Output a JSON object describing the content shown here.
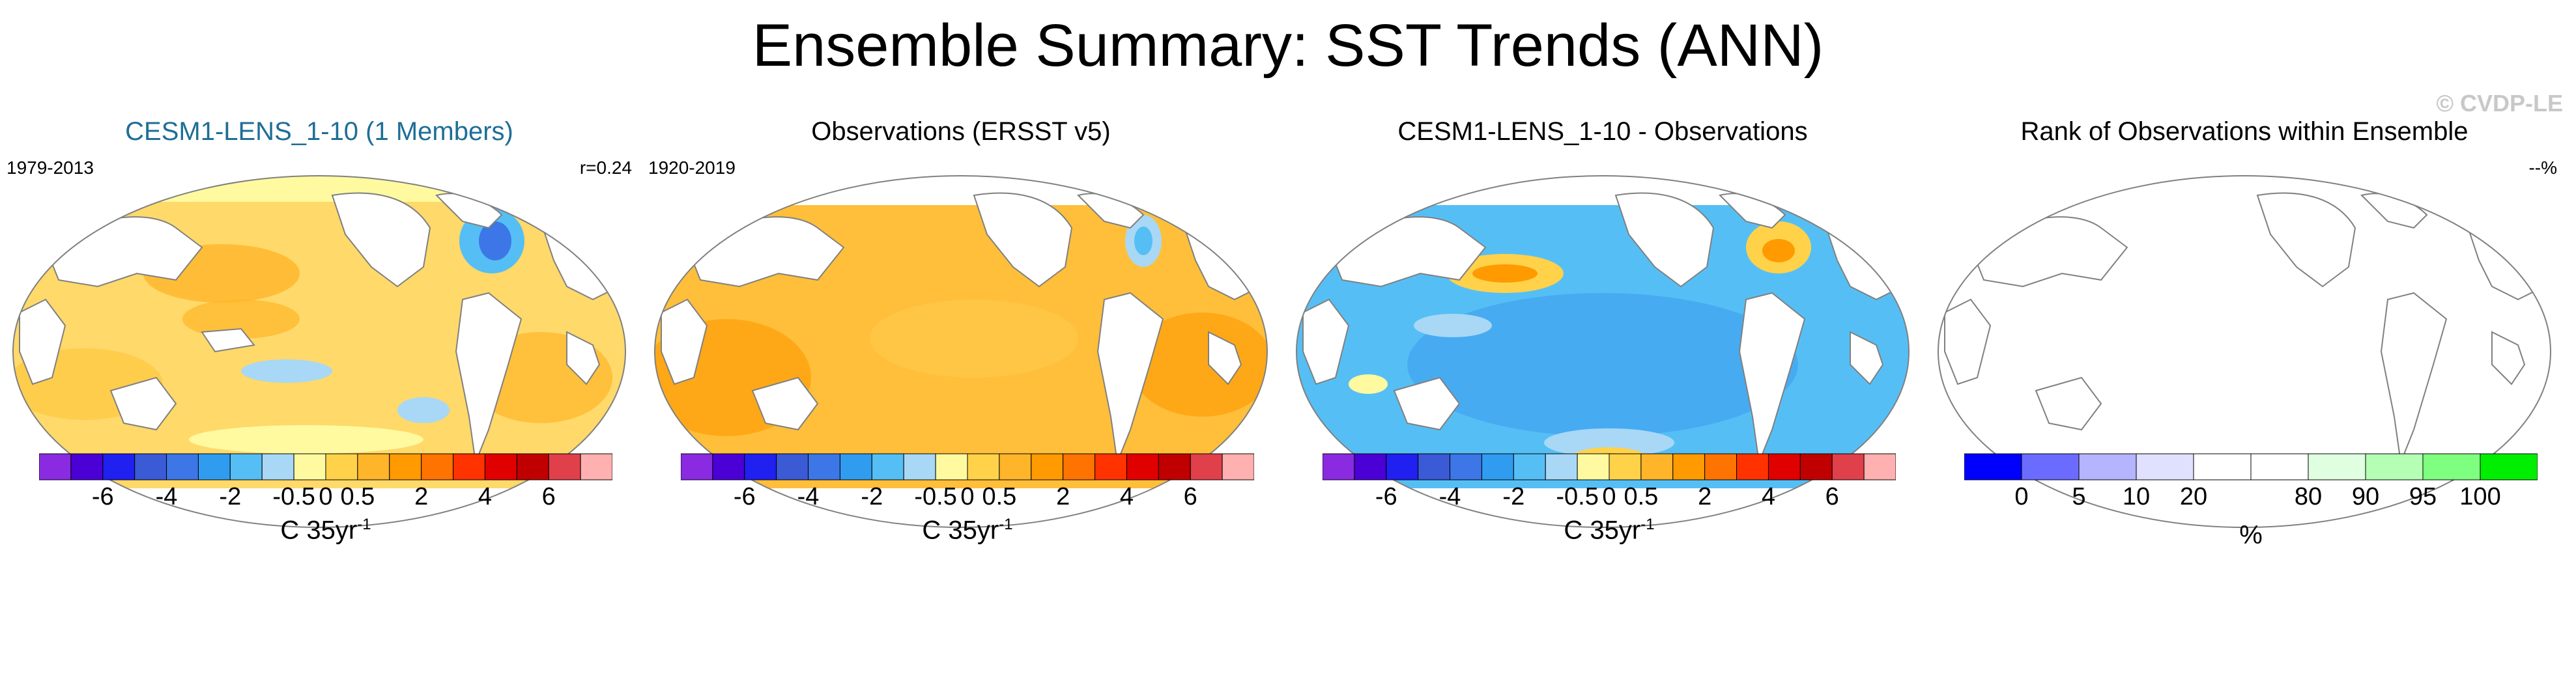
{
  "title": "Ensemble Summary: SST Trends (ANN)",
  "watermark": "© CVDP-LE",
  "panels": [
    {
      "title": "CESM1-LENS_1-10 (1 Members)",
      "left": "1979-2013",
      "right": "r=0.24"
    },
    {
      "title": "Observations (ERSST v5)",
      "left": "1920-2019",
      "right": ""
    },
    {
      "title": "CESM1-LENS_1-10 - Observations",
      "left": "",
      "right": ""
    },
    {
      "title": "Rank of Observations within Ensemble",
      "left": "",
      "right": "--%"
    }
  ],
  "colorbar_trend": {
    "colors": [
      "#8a2be2",
      "#4b00d6",
      "#2020f0",
      "#3a5ad6",
      "#3d76e6",
      "#2f9cf0",
      "#55bff5",
      "#a8d8f5",
      "#fffaa0",
      "#ffd24a",
      "#ffb52a",
      "#ff9a00",
      "#ff7300",
      "#ff3200",
      "#e00000",
      "#c00000",
      "#e0404a",
      "#ffb0b0"
    ],
    "ticks": [
      "-6",
      "-4",
      "-2",
      "-0.5",
      "0",
      "0.5",
      "2",
      "4",
      "6"
    ],
    "unit": "C 35yr",
    "unit_sup": "-1"
  },
  "colorbar_rank": {
    "colors": [
      "#0000ff",
      "#6b6bff",
      "#b4b4ff",
      "#e0e0ff",
      "#ffffff",
      "#ffffff",
      "#e0ffe0",
      "#b4ffb4",
      "#7fff7f",
      "#00ee00"
    ],
    "ticks": [
      "0",
      "5",
      "10",
      "20",
      "80",
      "90",
      "95",
      "100"
    ],
    "unit": "%"
  },
  "map_colors": {
    "ocean_land_border": "#808080",
    "panel1_ocean": "#ffd96a",
    "panel2_ocean": "#ffbf3a",
    "panel3_ocean": "#7ec8f5",
    "panel4_ocean": "#ffffff"
  }
}
